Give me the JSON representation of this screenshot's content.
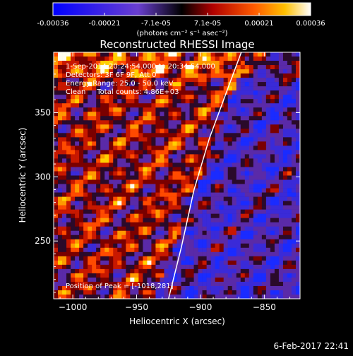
{
  "colorbar": {
    "ticks": [
      "-0.00036",
      "-0.00021",
      "-7.1e-05",
      "7.1e-05",
      "0.00021",
      "0.00036"
    ],
    "units": "(photons cm⁻² s⁻¹ asec⁻²)"
  },
  "chart_data": {
    "type": "heatmap",
    "title": "Reconstructed RHESSI Image",
    "xlabel": "Heliocentric X (arcsec)",
    "ylabel": "Heliocentric Y (arcsec)",
    "xlim": [
      -1015,
      -822
    ],
    "ylim": [
      205,
      397
    ],
    "x_ticks": [
      -1000,
      -950,
      -900,
      -850
    ],
    "x_tick_labels": [
      "−1000",
      "−950",
      "−900",
      "−850"
    ],
    "y_ticks": [
      250,
      300,
      350
    ],
    "y_tick_labels": [
      "250",
      "300",
      "350"
    ],
    "limb_curve": [
      [
        -925,
        205
      ],
      [
        -915,
        245
      ],
      [
        -905,
        290
      ],
      [
        -893,
        330
      ],
      [
        -880,
        365
      ],
      [
        -868,
        397
      ]
    ],
    "annotations": {
      "time_range": "1-Sep-2014 20:24:54.000 to 20:34:54.000",
      "detectors": "Detectors: 3F 6F 9F, Att 0",
      "energy": "Energy Range: 25.0 - 50.0 keV",
      "clean": "Clean     Total counts: 4.86E+03",
      "peak": "Position of Peak = [-1018,281]"
    },
    "timestamp": "6-Feb-2017 22:41",
    "colorscale": "IDL color table 3 with blue negatives"
  }
}
